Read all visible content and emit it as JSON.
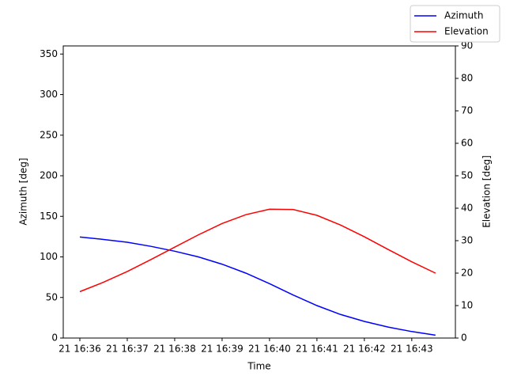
{
  "chart_data": {
    "type": "line",
    "xlabel": "Time",
    "ylabel": "Azimuth [deg]",
    "y2label": "Elevation [deg]",
    "x": [
      996,
      996.5,
      997,
      997.5,
      998,
      998.5,
      999,
      999.5,
      1000,
      1000.5,
      1001,
      1001.5,
      1002,
      1002.5,
      1003,
      1003.5
    ],
    "xlim": [
      995.65,
      1003.92
    ],
    "xticks": [
      {
        "value": 996,
        "label": "21 16:36"
      },
      {
        "value": 997,
        "label": "21 16:37"
      },
      {
        "value": 998,
        "label": "21 16:38"
      },
      {
        "value": 999,
        "label": "21 16:39"
      },
      {
        "value": 1000,
        "label": "21 16:40"
      },
      {
        "value": 1001,
        "label": "21 16:41"
      },
      {
        "value": 1002,
        "label": "21 16:42"
      },
      {
        "value": 1003,
        "label": "21 16:43"
      }
    ],
    "ylim": [
      0,
      360
    ],
    "yticks": [
      0,
      50,
      100,
      150,
      200,
      250,
      300,
      350
    ],
    "y2lim": [
      0,
      90
    ],
    "y2ticks": [
      0,
      10,
      20,
      30,
      40,
      50,
      60,
      70,
      80,
      90
    ],
    "legend": "upper right",
    "series": [
      {
        "name": "Azimuth",
        "color": "#0000ff",
        "values": [
          124.5,
          121.5,
          118,
          113,
          107,
          100,
          91,
          80,
          67,
          53,
          40,
          29,
          20.5,
          13.5,
          8,
          3.5
        ]
      },
      {
        "name": "Elevation",
        "color": "#ff0000",
        "axis": "y2",
        "values": [
          14.3,
          17.2,
          20.5,
          24.2,
          28,
          31.8,
          35.3,
          38,
          39.7,
          39.6,
          37.8,
          34.8,
          31.2,
          27.3,
          23.5,
          20
        ]
      }
    ]
  }
}
